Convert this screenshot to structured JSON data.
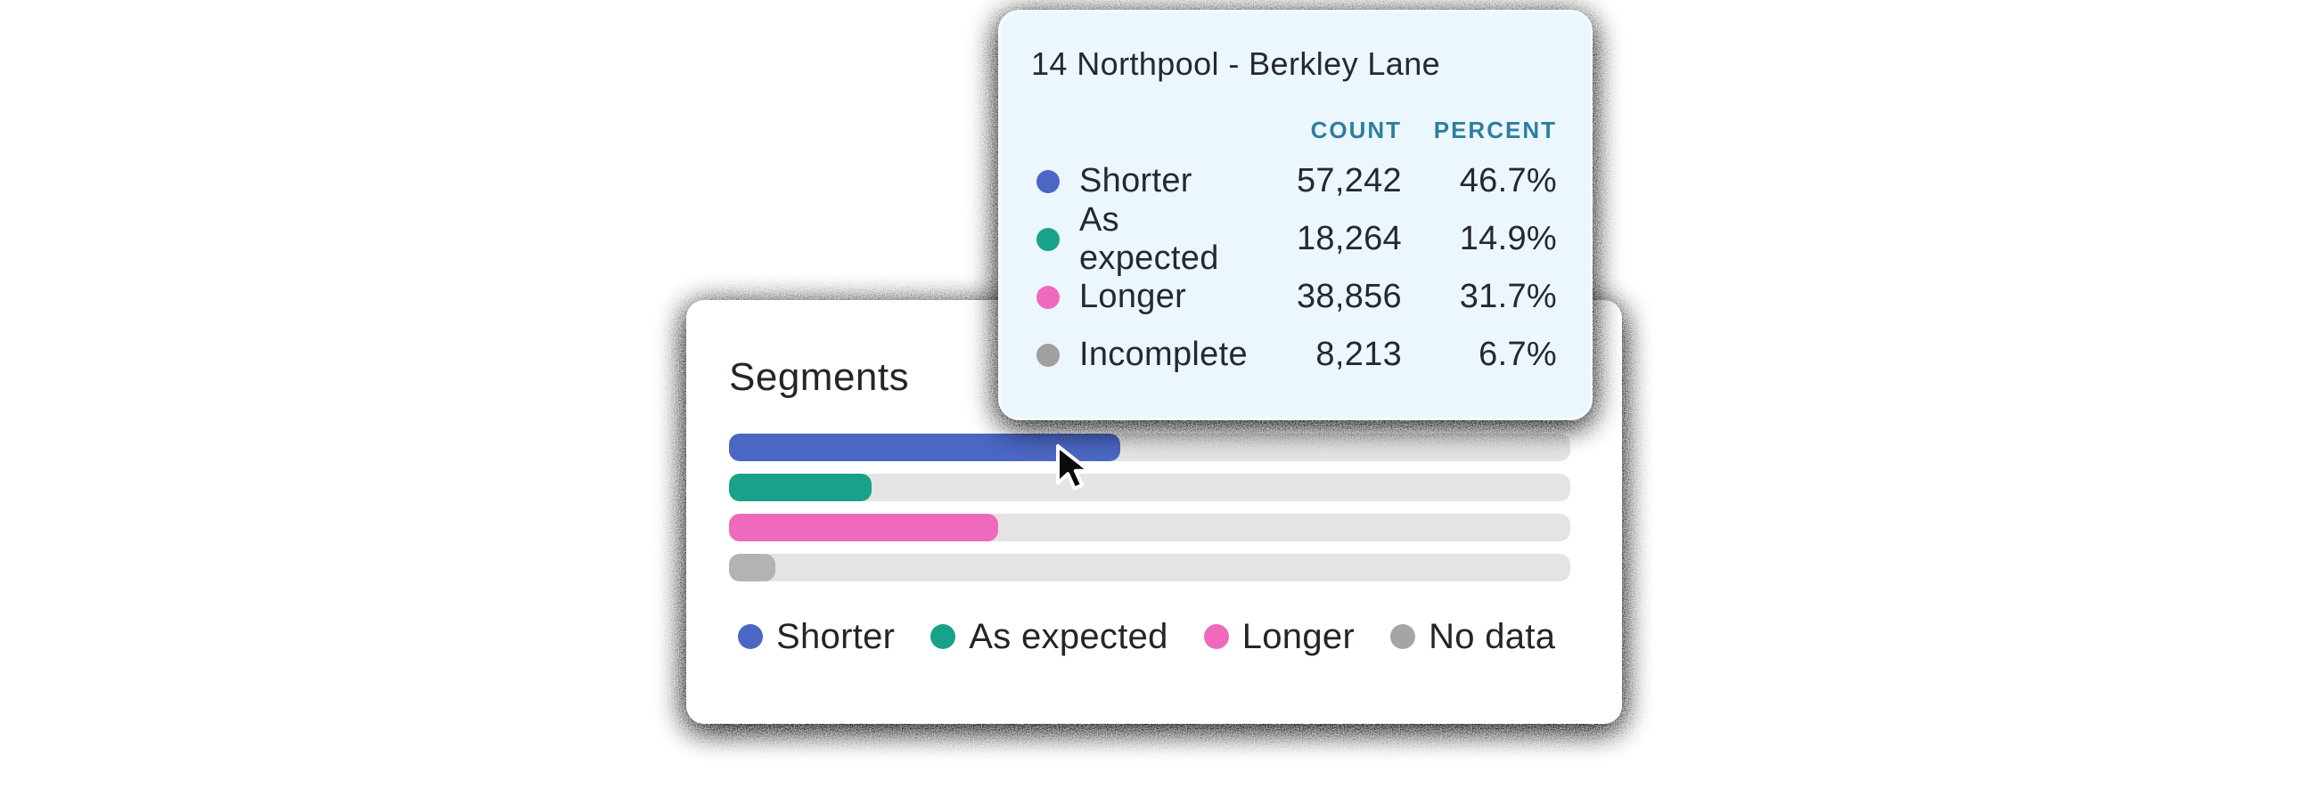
{
  "tooltip": {
    "title": "14 Northpool - Berkley Lane",
    "columns": [
      "COUNT",
      "PERCENT"
    ],
    "header_color": "#2d7e9f",
    "background": "#ebf7fd",
    "rows": [
      {
        "label": "Shorter",
        "color": "#4a67c3",
        "count": "57,242",
        "percent": "46.7%"
      },
      {
        "label": "As expected",
        "color": "#18a289",
        "count": "18,264",
        "percent": "14.9%"
      },
      {
        "label": "Longer",
        "color": "#ef69bd",
        "count": "38,856",
        "percent": "31.7%"
      },
      {
        "label": "Incomplete",
        "color": "#a0a0a0",
        "count": "8,213",
        "percent": "6.7%"
      }
    ]
  },
  "segments": {
    "title": "Segments",
    "track_color": "#e4e4e4",
    "bars": [
      {
        "name": "Shorter",
        "color": "#4a67c3",
        "width_pct": 46.5
      },
      {
        "name": "As expected",
        "color": "#18a289",
        "width_pct": 17.0
      },
      {
        "name": "Longer",
        "color": "#ef69bd",
        "width_pct": 32.0
      },
      {
        "name": "No data",
        "color": "#b3b3b3",
        "width_pct": 5.5
      }
    ],
    "legend": [
      {
        "label": "Shorter",
        "color": "#4a67c3"
      },
      {
        "label": "As expected",
        "color": "#18a289"
      },
      {
        "label": "Longer",
        "color": "#ef69bd"
      },
      {
        "label": "No data",
        "color": "#a5a5a5"
      }
    ]
  },
  "icons": {
    "cursor": "arrow-pointer",
    "dot": "circle"
  },
  "chart_data": {
    "type": "bar",
    "title": "Segments",
    "tooltip_title": "14 Northpool - Berkley Lane",
    "categories": [
      "Shorter",
      "As expected",
      "Longer",
      "Incomplete"
    ],
    "series": [
      {
        "name": "COUNT",
        "values": [
          57242,
          18264,
          38856,
          8213
        ]
      },
      {
        "name": "PERCENT",
        "values": [
          46.7,
          14.9,
          31.7,
          6.7
        ]
      }
    ],
    "legend": [
      "Shorter",
      "As expected",
      "Longer",
      "No data"
    ],
    "legend_position": "bottom",
    "colors": [
      "#4a67c3",
      "#18a289",
      "#ef69bd",
      "#b3b3b3"
    ],
    "orientation": "horizontal",
    "xlim": [
      0,
      100
    ],
    "grid": false
  }
}
